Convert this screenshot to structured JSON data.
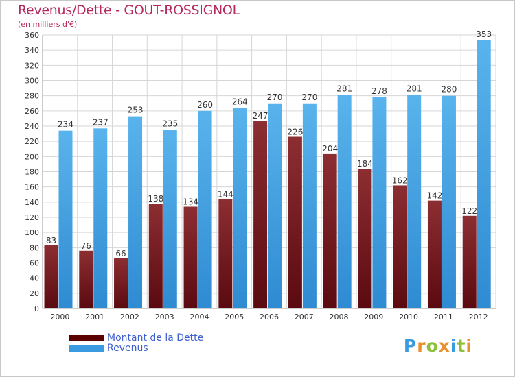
{
  "title": "Revenus/Dette - GOUT-ROSSIGNOL",
  "subtitle": "(en milliers d'€)",
  "brand": "Proxiti",
  "colors": {
    "debt": "#6e1e24",
    "revenue": "#3a9be0",
    "title": "#b5285e",
    "legend_text": "#3d5fcf"
  },
  "legend": [
    {
      "label": "Montant de la Dette",
      "color": "#5c0000"
    },
    {
      "label": "Revenus",
      "color": "#3a9be0"
    }
  ],
  "chart_data": {
    "type": "bar",
    "categories": [
      "2000",
      "2001",
      "2002",
      "2003",
      "2004",
      "2005",
      "2006",
      "2007",
      "2008",
      "2009",
      "2010",
      "2011",
      "2012"
    ],
    "series": [
      {
        "name": "Montant de la Dette",
        "values": [
          83,
          76,
          66,
          138,
          134,
          144,
          247,
          226,
          204,
          184,
          162,
          142,
          122
        ]
      },
      {
        "name": "Revenus",
        "values": [
          234,
          237,
          253,
          235,
          260,
          264,
          270,
          270,
          281,
          278,
          281,
          280,
          353
        ]
      }
    ],
    "ylim": [
      0,
      360
    ],
    "yticks": [
      0,
      20,
      40,
      60,
      80,
      100,
      120,
      140,
      160,
      180,
      200,
      220,
      240,
      260,
      280,
      300,
      320,
      340,
      360
    ],
    "grid": true,
    "legend_position": "bottom-left"
  }
}
